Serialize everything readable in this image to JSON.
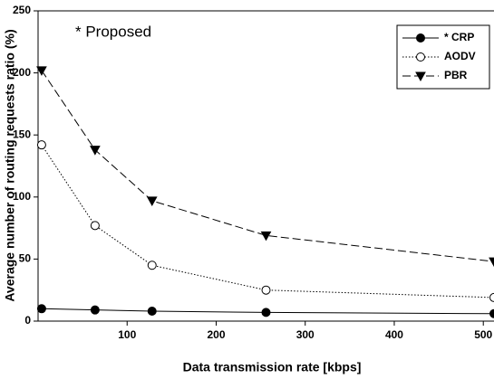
{
  "chart_data": {
    "type": "line",
    "annotation": "* Proposed",
    "x_label": "Data transmission rate [kbps]",
    "y_label": "Average number of routing requests ratio (%)",
    "x": [
      4,
      64,
      128,
      256,
      512
    ],
    "series": [
      {
        "name": "* CRP",
        "color": "#000000",
        "dash": "solid",
        "marker": "circle",
        "marker_fill": "#000000",
        "values": [
          10,
          9,
          8,
          7,
          6
        ]
      },
      {
        "name": "AODV",
        "color": "#000000",
        "dash": "dotted",
        "marker": "circle",
        "marker_fill": "#ffffff",
        "values": [
          142,
          77,
          45,
          25,
          19
        ]
      },
      {
        "name": "PBR",
        "color": "#000000",
        "dash": "dashed",
        "marker": "triangle-down",
        "marker_fill": "#000000",
        "values": [
          202,
          138,
          97,
          69,
          48
        ]
      }
    ],
    "xlim": [
      0,
      512
    ],
    "xticks": [
      100,
      200,
      300,
      400,
      500
    ],
    "ylim": [
      0,
      250
    ],
    "yticks": [
      0,
      50,
      100,
      150,
      200,
      250
    ],
    "legend": "upper right"
  }
}
